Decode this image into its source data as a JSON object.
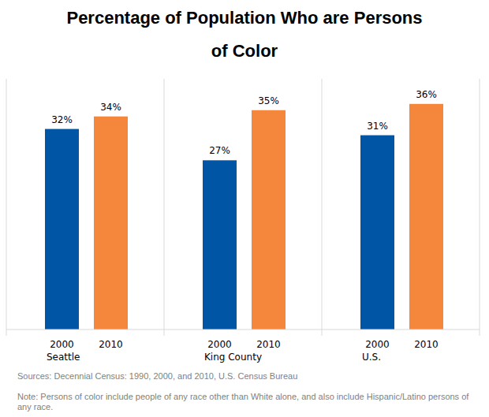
{
  "chart_data": {
    "type": "bar",
    "title": "Percentage of Population Who are Persons of Color",
    "categories": [
      "Seattle",
      "King County",
      "U.S."
    ],
    "series": [
      {
        "name": "2000",
        "color": "#0055a4",
        "values": [
          32,
          27,
          31
        ],
        "value_labels": [
          "32%",
          "27%",
          "31%"
        ]
      },
      {
        "name": "2010",
        "color": "#f5873c",
        "values": [
          34,
          35,
          36
        ],
        "value_labels": [
          "34%",
          "35%",
          "36%"
        ]
      }
    ],
    "ylim": [
      0,
      40
    ],
    "grid": false,
    "data_labels": true,
    "tick_labels": "x",
    "source": "Sources: Decennial Census: 1990, 2000, and 2010, U.S. Census Bureau",
    "note": "Note: Persons of color include people of any race other than White alone, and also include Hispanic/Latino persons of any race."
  }
}
